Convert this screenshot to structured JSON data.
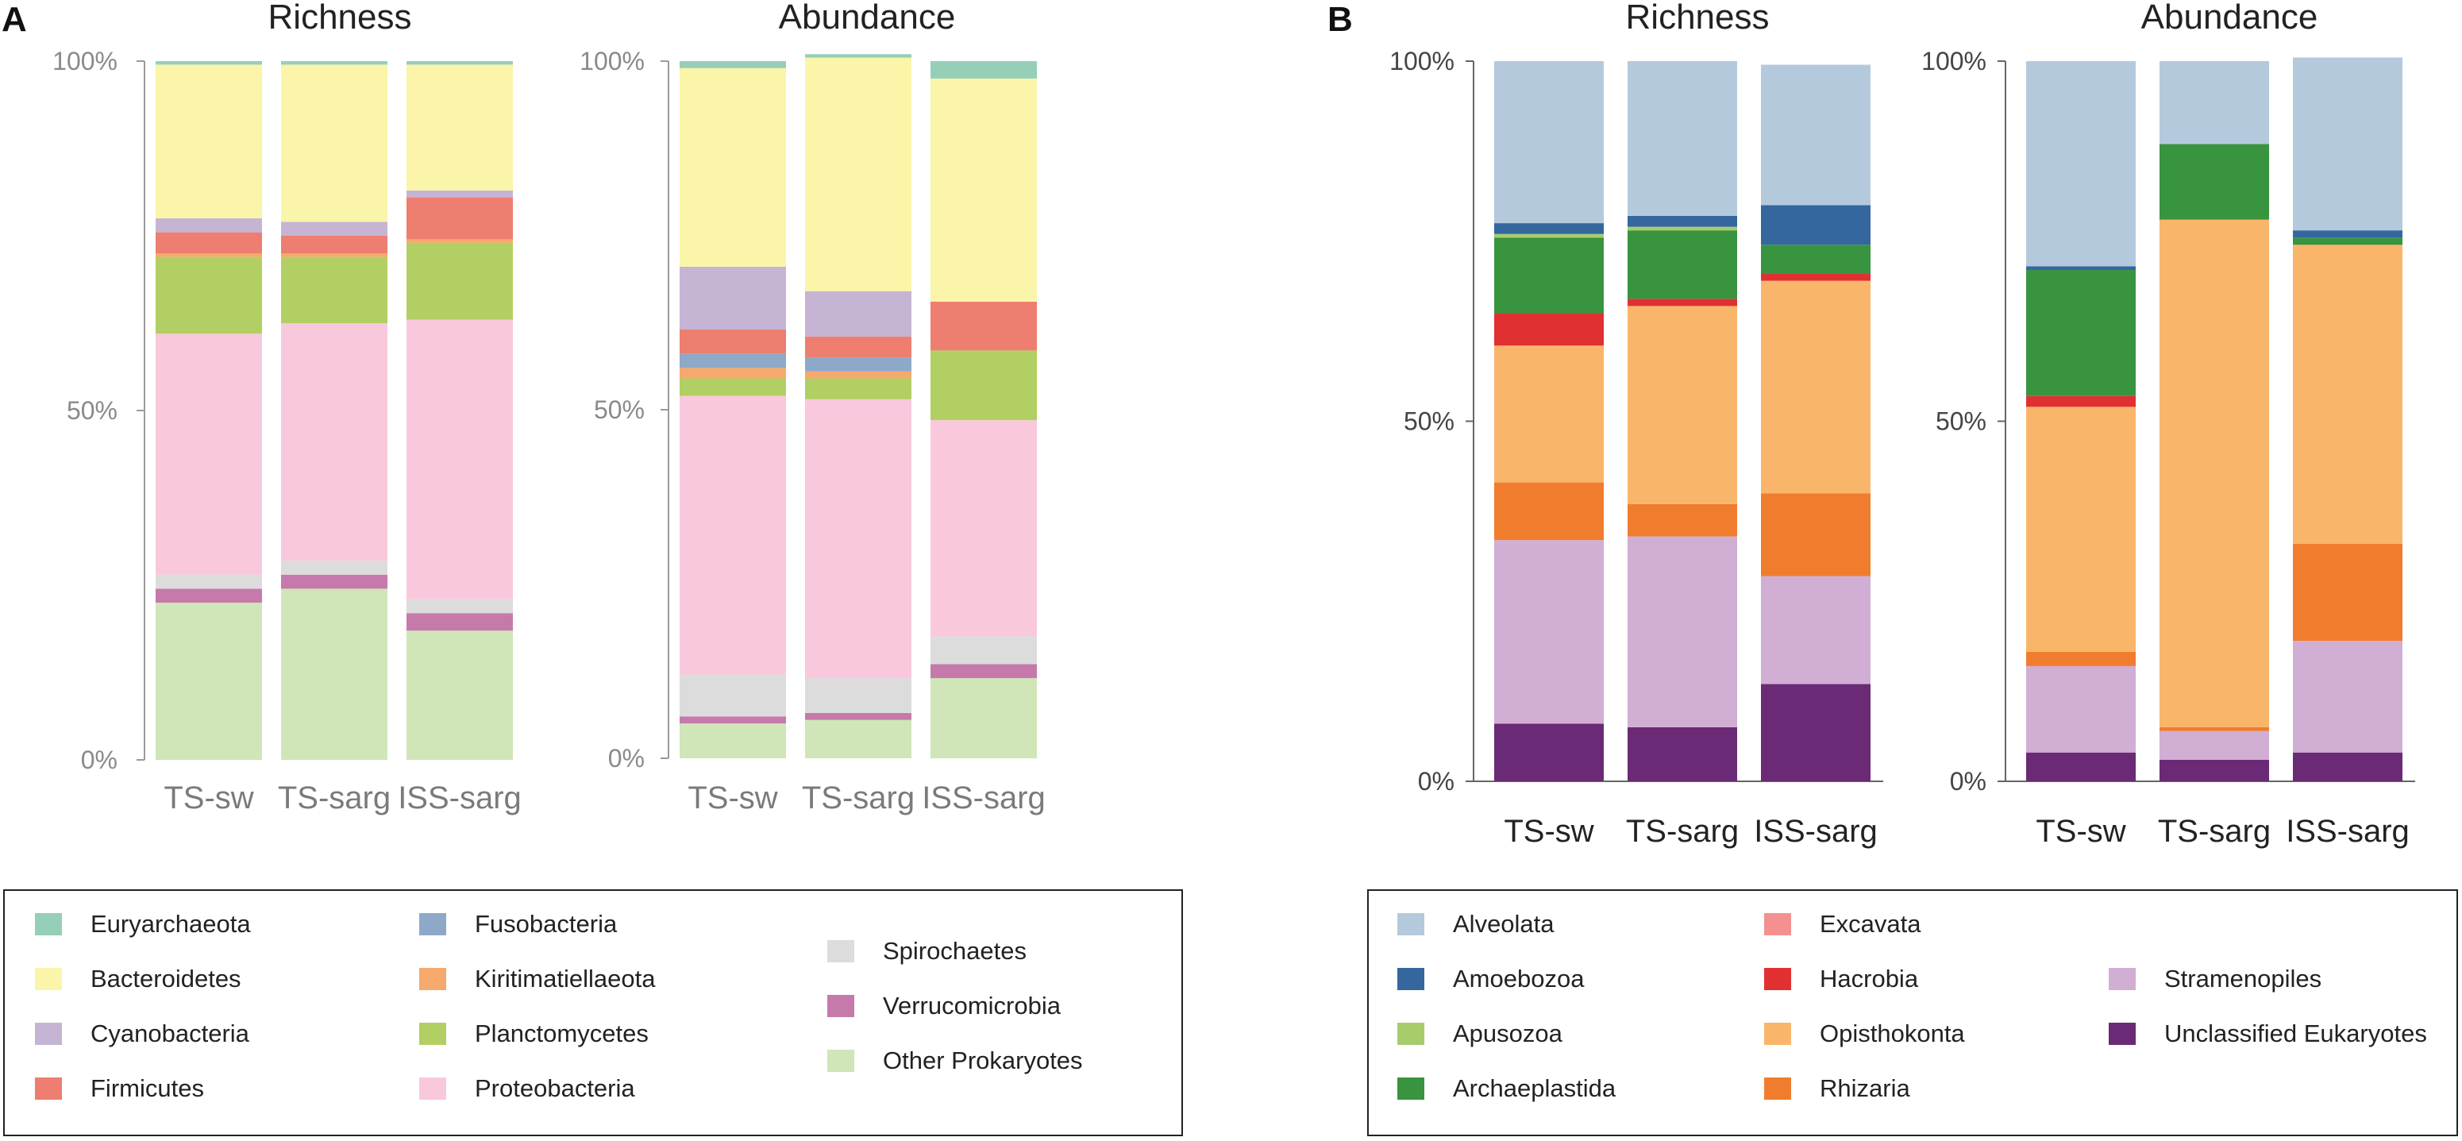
{
  "chart_data": [
    {
      "panel": "A",
      "type": "bar",
      "stacked": "percent",
      "title": "Richness",
      "categories": [
        "TS-sw",
        "TS-sarg",
        "ISS-sarg"
      ],
      "ylim": [
        0,
        100
      ],
      "yticks": [
        "0%",
        "50%",
        "100%"
      ],
      "series": [
        {
          "name": "Other Prokaryotes",
          "color": "#d0e5b8",
          "values": [
            22.5,
            24.5,
            18.5
          ]
        },
        {
          "name": "Verrucomicrobia",
          "color": "#c57aab",
          "values": [
            2,
            2,
            2.5
          ]
        },
        {
          "name": "Spirochaetes",
          "color": "#dcdcdc",
          "values": [
            2,
            2,
            2
          ]
        },
        {
          "name": "Proteobacteria",
          "color": "#f9c8dc",
          "values": [
            34.5,
            34,
            40
          ]
        },
        {
          "name": "Planctomycetes",
          "color": "#b2cf63",
          "values": [
            11,
            9.5,
            11
          ]
        },
        {
          "name": "Kiritimatiellaeota",
          "color": "#f6a96c",
          "values": [
            0.5,
            0.5,
            0.5
          ]
        },
        {
          "name": "Fusobacteria",
          "color": "#8ea9c8",
          "values": [
            0,
            0,
            0
          ]
        },
        {
          "name": "Firmicutes",
          "color": "#ed7e70",
          "values": [
            3,
            2.5,
            6
          ]
        },
        {
          "name": "Cyanobacteria",
          "color": "#c6b4d4",
          "values": [
            2,
            2,
            1
          ]
        },
        {
          "name": "Bacteroidetes",
          "color": "#faf5a8",
          "values": [
            22,
            22.5,
            18
          ]
        },
        {
          "name": "Euryarchaeota",
          "color": "#96cfb8",
          "values": [
            0.5,
            0.5,
            0.5
          ]
        }
      ]
    },
    {
      "panel": "A",
      "type": "bar",
      "stacked": "percent",
      "title": "Abundance",
      "categories": [
        "TS-sw",
        "TS-sarg",
        "ISS-sarg"
      ],
      "ylim": [
        0,
        100
      ],
      "yticks": [
        "0%",
        "50%",
        "100%"
      ],
      "series": [
        {
          "name": "Other Prokaryotes",
          "color": "#d0e5b8",
          "values": [
            5,
            5.5,
            11.5
          ]
        },
        {
          "name": "Verrucomicrobia",
          "color": "#c57aab",
          "values": [
            1,
            1,
            2
          ]
        },
        {
          "name": "Spirochaetes",
          "color": "#dcdcdc",
          "values": [
            6,
            5,
            4
          ]
        },
        {
          "name": "Proteobacteria",
          "color": "#f9c8dc",
          "values": [
            40,
            40,
            31
          ]
        },
        {
          "name": "Planctomycetes",
          "color": "#b2cf63",
          "values": [
            2.5,
            3,
            10
          ]
        },
        {
          "name": "Kiritimatiellaeota",
          "color": "#f6a96c",
          "values": [
            1.5,
            1,
            0
          ]
        },
        {
          "name": "Fusobacteria",
          "color": "#8ea9c8",
          "values": [
            2,
            2,
            0
          ]
        },
        {
          "name": "Firmicutes",
          "color": "#ed7e70",
          "values": [
            3.5,
            3,
            7
          ]
        },
        {
          "name": "Cyanobacteria",
          "color": "#c6b4d4",
          "values": [
            9,
            6.5,
            0
          ]
        },
        {
          "name": "Bacteroidetes",
          "color": "#faf5a8",
          "values": [
            28.5,
            33.5,
            32
          ]
        },
        {
          "name": "Euryarchaeota",
          "color": "#96cfb8",
          "values": [
            1,
            0.5,
            2.5
          ]
        }
      ]
    },
    {
      "panel": "B",
      "type": "bar",
      "stacked": "percent",
      "title": "Richness",
      "categories": [
        "TS-sw",
        "TS-sarg",
        "ISS-sarg"
      ],
      "ylim": [
        0,
        100
      ],
      "yticks": [
        "0%",
        "50%",
        "100%"
      ],
      "series": [
        {
          "name": "Unclassified Eukaryotes",
          "color": "#6a2a75",
          "values": [
            8,
            7.5,
            13.5
          ]
        },
        {
          "name": "Stramenopiles",
          "color": "#d1aed3",
          "values": [
            25.5,
            26.5,
            15
          ]
        },
        {
          "name": "Rhizaria",
          "color": "#f07d2d",
          "values": [
            8,
            4.5,
            11.5
          ]
        },
        {
          "name": "Opisthokonta",
          "color": "#f9b66b",
          "values": [
            19,
            27.5,
            29.5
          ]
        },
        {
          "name": "Hacrobia",
          "color": "#e03032",
          "values": [
            4.5,
            1,
            1
          ]
        },
        {
          "name": "Excavata",
          "color": "#f59090",
          "values": [
            0,
            0,
            0
          ]
        },
        {
          "name": "Archaeplastida",
          "color": "#38943e",
          "values": [
            10.5,
            9.5,
            4
          ]
        },
        {
          "name": "Apusozoa",
          "color": "#a8cc6c",
          "values": [
            0.5,
            0.5,
            0
          ]
        },
        {
          "name": "Amoebozoa",
          "color": "#34679e",
          "values": [
            1.5,
            1.5,
            5.5
          ]
        },
        {
          "name": "Alveolata",
          "color": "#b4cadc",
          "values": [
            22.5,
            21.5,
            19.5
          ]
        }
      ]
    },
    {
      "panel": "B",
      "type": "bar",
      "stacked": "percent",
      "title": "Abundance",
      "categories": [
        "TS-sw",
        "TS-sarg",
        "ISS-sarg"
      ],
      "ylim": [
        0,
        100
      ],
      "yticks": [
        "0%",
        "50%",
        "100%"
      ],
      "series": [
        {
          "name": "Unclassified Eukaryotes",
          "color": "#6a2a75",
          "values": [
            4,
            3,
            4
          ]
        },
        {
          "name": "Stramenopiles",
          "color": "#d1aed3",
          "values": [
            12,
            4,
            15.5
          ]
        },
        {
          "name": "Rhizaria",
          "color": "#f07d2d",
          "values": [
            2,
            0.5,
            13.5
          ]
        },
        {
          "name": "Opisthokonta",
          "color": "#f9b66b",
          "values": [
            34,
            70.5,
            41.5
          ]
        },
        {
          "name": "Hacrobia",
          "color": "#e03032",
          "values": [
            1.5,
            0,
            0
          ]
        },
        {
          "name": "Excavata",
          "color": "#f59090",
          "values": [
            0,
            0,
            0
          ]
        },
        {
          "name": "Archaeplastida",
          "color": "#38943e",
          "values": [
            17.5,
            10.5,
            1
          ]
        },
        {
          "name": "Apusozoa",
          "color": "#a8cc6c",
          "values": [
            0,
            0,
            0
          ]
        },
        {
          "name": "Amoebozoa",
          "color": "#34679e",
          "values": [
            0.5,
            0,
            1
          ]
        },
        {
          "name": "Alveolata",
          "color": "#b4cadc",
          "values": [
            28.5,
            11.5,
            24
          ]
        }
      ]
    }
  ],
  "panels": {
    "a_label": "A",
    "b_label": "B"
  },
  "legend_a": [
    {
      "name": "Euryarchaeota",
      "color": "#96cfb8"
    },
    {
      "name": "Bacteroidetes",
      "color": "#faf5a8"
    },
    {
      "name": "Cyanobacteria",
      "color": "#c6b4d4"
    },
    {
      "name": "Firmicutes",
      "color": "#ed7e70"
    },
    {
      "name": "Fusobacteria",
      "color": "#8ea9c8"
    },
    {
      "name": "Kiritimatiellaeota",
      "color": "#f6a96c"
    },
    {
      "name": "Planctomycetes",
      "color": "#b2cf63"
    },
    {
      "name": "Proteobacteria",
      "color": "#f9c8dc"
    },
    {
      "name": "Spirochaetes",
      "color": "#dcdcdc"
    },
    {
      "name": "Verrucomicrobia",
      "color": "#c57aab"
    },
    {
      "name": "Other Prokaryotes",
      "color": "#d0e5b8"
    }
  ],
  "legend_b": [
    {
      "name": "Alveolata",
      "color": "#b4cadc"
    },
    {
      "name": "Amoebozoa",
      "color": "#34679e"
    },
    {
      "name": "Apusozoa",
      "color": "#a8cc6c"
    },
    {
      "name": "Archaeplastida",
      "color": "#38943e"
    },
    {
      "name": "Excavata",
      "color": "#f59090"
    },
    {
      "name": "Hacrobia",
      "color": "#e03032"
    },
    {
      "name": "Opisthokonta",
      "color": "#f9b66b"
    },
    {
      "name": "Rhizaria",
      "color": "#f07d2d"
    },
    {
      "name": "Stramenopiles",
      "color": "#d1aed3"
    },
    {
      "name": "Unclassified Eukaryotes",
      "color": "#6a2a75"
    }
  ]
}
